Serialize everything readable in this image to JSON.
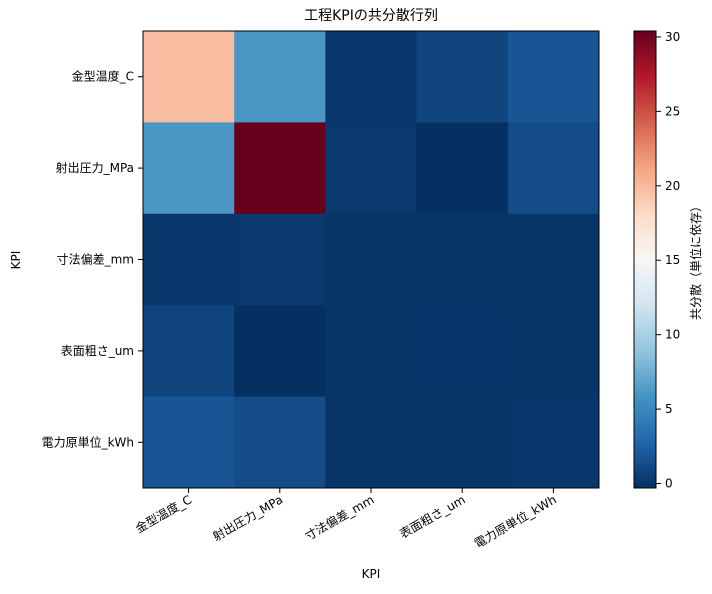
{
  "chart_data": {
    "type": "heatmap",
    "title": "工程KPIの共分散行列",
    "xlabel": "KPI",
    "ylabel": "KPI",
    "x_categories": [
      "金型温度_C",
      "射出圧力_MPa",
      "寸法偏差_mm",
      "表面粗さ_um",
      "電力原単位_kWh"
    ],
    "y_categories": [
      "金型温度_C",
      "射出圧力_MPa",
      "寸法偏差_mm",
      "表面粗さ_um",
      "電力原単位_kWh"
    ],
    "values": [
      [
        19.8,
        6.1,
        0.1,
        0.9,
        1.8
      ],
      [
        6.1,
        30.4,
        0.2,
        -0.3,
        1.3
      ],
      [
        0.1,
        0.2,
        0.02,
        0.0,
        0.0
      ],
      [
        0.9,
        -0.3,
        0.0,
        0.05,
        0.0
      ],
      [
        1.8,
        1.3,
        0.0,
        0.0,
        0.1
      ]
    ],
    "colormap": "RdBu_r",
    "vmin": -0.3,
    "vmax": 30.4,
    "colorbar": {
      "label": "共分散（単位に依存）",
      "ticks": [
        0,
        5,
        10,
        15,
        20,
        25,
        30
      ]
    }
  }
}
